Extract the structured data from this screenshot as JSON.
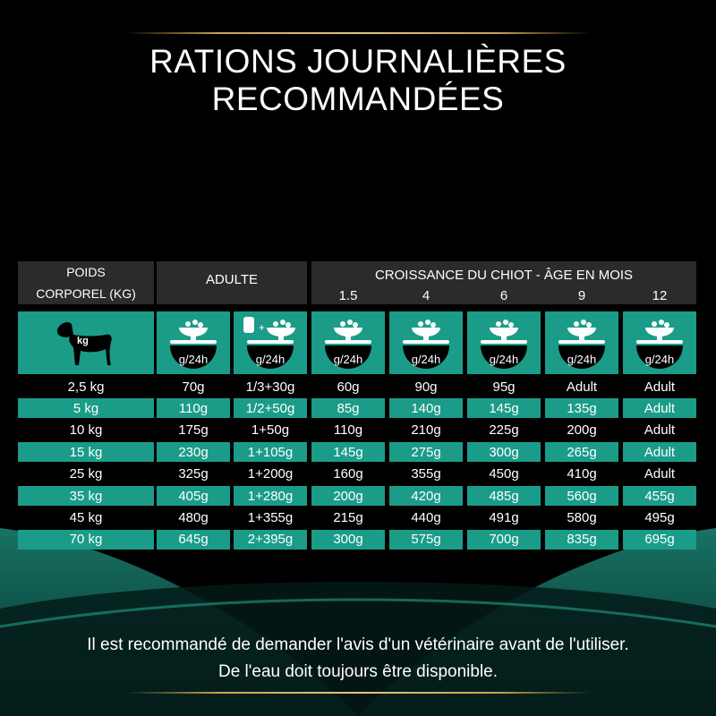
{
  "title": "RATIONS JOURNALIÈRES RECOMMANDÉES",
  "table": {
    "header": {
      "weight": [
        "POIDS",
        "CORPOREL (KG)"
      ],
      "adult": "ADULTE",
      "growth": "CROISSANCE DU CHIOT - ÂGE EN MOIS",
      "ages": [
        "1.5",
        "4",
        "6",
        "9",
        "12"
      ]
    },
    "icons": {
      "weight_unit": "kg",
      "ration_unit": "g/24h"
    },
    "rows": [
      [
        "2,5 kg",
        "70g",
        "1/3+30g",
        "60g",
        "90g",
        "95g",
        "Adult",
        "Adult"
      ],
      [
        "5 kg",
        "110g",
        "1/2+50g",
        "85g",
        "140g",
        "145g",
        "135g",
        "Adult"
      ],
      [
        "10 kg",
        "175g",
        "1+50g",
        "110g",
        "210g",
        "225g",
        "200g",
        "Adult"
      ],
      [
        "15 kg",
        "230g",
        "1+105g",
        "145g",
        "275g",
        "300g",
        "265g",
        "Adult"
      ],
      [
        "25 kg",
        "325g",
        "1+200g",
        "160g",
        "355g",
        "450g",
        "410g",
        "Adult"
      ],
      [
        "35 kg",
        "405g",
        "1+280g",
        "200g",
        "420g",
        "485g",
        "560g",
        "455g"
      ],
      [
        "45 kg",
        "480g",
        "1+355g",
        "215g",
        "440g",
        "491g",
        "580g",
        "495g"
      ],
      [
        "70 kg",
        "645g",
        "2+395g",
        "300g",
        "575g",
        "700g",
        "835g",
        "695g"
      ]
    ]
  },
  "footer": [
    "Il est recommandé de demander l'avis d'un vétérinaire avant de l'utiliser.",
    "De l'eau doit toujours être disponible."
  ]
}
